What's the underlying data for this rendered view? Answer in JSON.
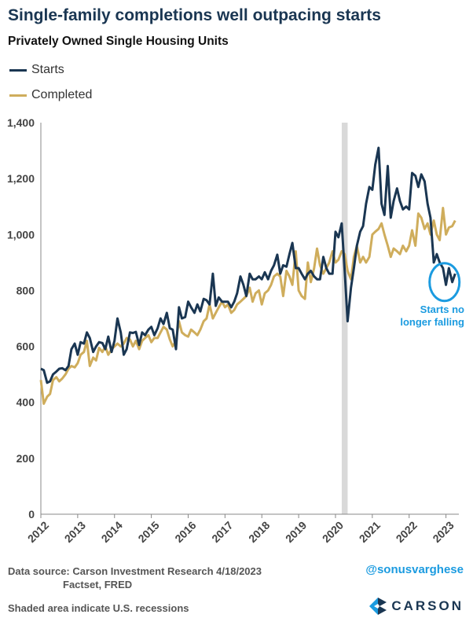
{
  "title": "Single-family completions well outpacing starts",
  "subtitle": "Privately Owned Single Housing Units",
  "footer": {
    "source_line1": "Data source: Carson Investment Research  4/18/2023",
    "source_line2": "Factset, FRED",
    "note": "Shaded area indicate U.S. recessions",
    "handle": "@sonusvarghese",
    "logo_text": "CARSON"
  },
  "colors": {
    "starts": "#1a3652",
    "completed": "#cfad5c",
    "recession": "#d9d9d9",
    "annotation": "#1b9be0",
    "logo": "#1a3652"
  },
  "chart_data": {
    "type": "line",
    "ylim": [
      0,
      1400
    ],
    "yticks": [
      0,
      200,
      400,
      600,
      800,
      1000,
      1200,
      1400
    ],
    "ytick_labels": [
      "0",
      "200",
      "400",
      "600",
      "800",
      "1,000",
      "1,200",
      "1,400"
    ],
    "xlim": [
      2012.0,
      2023.35
    ],
    "xticks": [
      2012,
      2013,
      2014,
      2015,
      2016,
      2017,
      2018,
      2019,
      2020,
      2021,
      2022,
      2023
    ],
    "xtick_labels": [
      "2012",
      "2013",
      "2014",
      "2015",
      "2016",
      "2017",
      "2018",
      "2019",
      "2020",
      "2021",
      "2022",
      "2023"
    ],
    "grid": false,
    "legend_position": "top-left",
    "recession": [
      2020.17,
      2020.33
    ],
    "annotation": {
      "text_line1": "Starts no",
      "text_line2": "longer falling",
      "x": 2022.96,
      "y": 830
    },
    "series": [
      {
        "name": "Starts",
        "color": "#1a3652",
        "points": [
          [
            2012.0,
            520
          ],
          [
            2012.08,
            515
          ],
          [
            2012.17,
            470
          ],
          [
            2012.25,
            475
          ],
          [
            2012.33,
            500
          ],
          [
            2012.42,
            510
          ],
          [
            2012.5,
            520
          ],
          [
            2012.58,
            522
          ],
          [
            2012.67,
            515
          ],
          [
            2012.75,
            530
          ],
          [
            2012.83,
            590
          ],
          [
            2012.92,
            610
          ],
          [
            2013.0,
            570
          ],
          [
            2013.08,
            615
          ],
          [
            2013.17,
            610
          ],
          [
            2013.25,
            650
          ],
          [
            2013.33,
            630
          ],
          [
            2013.42,
            580
          ],
          [
            2013.5,
            600
          ],
          [
            2013.58,
            615
          ],
          [
            2013.67,
            612
          ],
          [
            2013.75,
            590
          ],
          [
            2013.83,
            635
          ],
          [
            2013.92,
            580
          ],
          [
            2014.0,
            620
          ],
          [
            2014.08,
            700
          ],
          [
            2014.17,
            650
          ],
          [
            2014.25,
            570
          ],
          [
            2014.33,
            590
          ],
          [
            2014.42,
            650
          ],
          [
            2014.5,
            648
          ],
          [
            2014.58,
            652
          ],
          [
            2014.67,
            605
          ],
          [
            2014.75,
            650
          ],
          [
            2014.83,
            640
          ],
          [
            2014.92,
            660
          ],
          [
            2015.0,
            670
          ],
          [
            2015.08,
            640
          ],
          [
            2015.17,
            665
          ],
          [
            2015.25,
            700
          ],
          [
            2015.33,
            680
          ],
          [
            2015.42,
            720
          ],
          [
            2015.5,
            665
          ],
          [
            2015.58,
            660
          ],
          [
            2015.67,
            590
          ],
          [
            2015.75,
            740
          ],
          [
            2015.83,
            700
          ],
          [
            2015.92,
            705
          ],
          [
            2016.0,
            760
          ],
          [
            2016.08,
            740
          ],
          [
            2016.17,
            720
          ],
          [
            2016.25,
            750
          ],
          [
            2016.33,
            725
          ],
          [
            2016.42,
            770
          ],
          [
            2016.5,
            765
          ],
          [
            2016.58,
            750
          ],
          [
            2016.67,
            860
          ],
          [
            2016.75,
            745
          ],
          [
            2016.83,
            775
          ],
          [
            2016.92,
            760
          ],
          [
            2017.0,
            760
          ],
          [
            2017.08,
            760
          ],
          [
            2017.17,
            740
          ],
          [
            2017.25,
            760
          ],
          [
            2017.33,
            790
          ],
          [
            2017.42,
            850
          ],
          [
            2017.5,
            820
          ],
          [
            2017.58,
            780
          ],
          [
            2017.67,
            860
          ],
          [
            2017.75,
            840
          ],
          [
            2017.83,
            840
          ],
          [
            2017.92,
            850
          ],
          [
            2018.0,
            840
          ],
          [
            2018.08,
            865
          ],
          [
            2018.17,
            840
          ],
          [
            2018.25,
            870
          ],
          [
            2018.33,
            890
          ],
          [
            2018.42,
            928
          ],
          [
            2018.5,
            860
          ],
          [
            2018.58,
            890
          ],
          [
            2018.67,
            885
          ],
          [
            2018.75,
            930
          ],
          [
            2018.83,
            970
          ],
          [
            2018.92,
            880
          ],
          [
            2019.0,
            880
          ],
          [
            2019.08,
            860
          ],
          [
            2019.17,
            840
          ],
          [
            2019.25,
            860
          ],
          [
            2019.33,
            870
          ],
          [
            2019.42,
            850
          ],
          [
            2019.5,
            840
          ],
          [
            2019.58,
            840
          ],
          [
            2019.67,
            920
          ],
          [
            2019.75,
            880
          ],
          [
            2019.83,
            860
          ],
          [
            2019.92,
            860
          ],
          [
            2020.0,
            1010
          ],
          [
            2020.08,
            990
          ],
          [
            2020.17,
            1040
          ],
          [
            2020.25,
            870
          ],
          [
            2020.33,
            690
          ],
          [
            2020.42,
            810
          ],
          [
            2020.5,
            880
          ],
          [
            2020.58,
            960
          ],
          [
            2020.67,
            1010
          ],
          [
            2020.75,
            1030
          ],
          [
            2020.83,
            1110
          ],
          [
            2020.92,
            1170
          ],
          [
            2021.0,
            1160
          ],
          [
            2021.08,
            1250
          ],
          [
            2021.17,
            1310
          ],
          [
            2021.25,
            1110
          ],
          [
            2021.33,
            1070
          ],
          [
            2021.42,
            1245
          ],
          [
            2021.5,
            1060
          ],
          [
            2021.58,
            1120
          ],
          [
            2021.67,
            1165
          ],
          [
            2021.75,
            1120
          ],
          [
            2021.83,
            1090
          ],
          [
            2021.92,
            1100
          ],
          [
            2022.0,
            1090
          ],
          [
            2022.08,
            1220
          ],
          [
            2022.17,
            1210
          ],
          [
            2022.25,
            1170
          ],
          [
            2022.33,
            1215
          ],
          [
            2022.42,
            1190
          ],
          [
            2022.5,
            1110
          ],
          [
            2022.58,
            1060
          ],
          [
            2022.67,
            900
          ],
          [
            2022.75,
            930
          ],
          [
            2022.83,
            900
          ],
          [
            2022.92,
            880
          ],
          [
            2023.0,
            820
          ],
          [
            2023.08,
            880
          ],
          [
            2023.17,
            830
          ],
          [
            2023.25,
            860
          ]
        ]
      },
      {
        "name": "Completed",
        "color": "#cfad5c",
        "points": [
          [
            2012.0,
            480
          ],
          [
            2012.08,
            395
          ],
          [
            2012.17,
            420
          ],
          [
            2012.25,
            430
          ],
          [
            2012.33,
            480
          ],
          [
            2012.42,
            490
          ],
          [
            2012.5,
            475
          ],
          [
            2012.58,
            485
          ],
          [
            2012.67,
            500
          ],
          [
            2012.75,
            520
          ],
          [
            2012.83,
            530
          ],
          [
            2012.92,
            525
          ],
          [
            2013.0,
            540
          ],
          [
            2013.08,
            570
          ],
          [
            2013.17,
            580
          ],
          [
            2013.25,
            620
          ],
          [
            2013.33,
            530
          ],
          [
            2013.42,
            560
          ],
          [
            2013.5,
            550
          ],
          [
            2013.58,
            595
          ],
          [
            2013.67,
            580
          ],
          [
            2013.75,
            600
          ],
          [
            2013.83,
            570
          ],
          [
            2013.92,
            590
          ],
          [
            2014.0,
            600
          ],
          [
            2014.08,
            610
          ],
          [
            2014.17,
            600
          ],
          [
            2014.25,
            610
          ],
          [
            2014.33,
            630
          ],
          [
            2014.42,
            625
          ],
          [
            2014.5,
            600
          ],
          [
            2014.58,
            620
          ],
          [
            2014.67,
            590
          ],
          [
            2014.75,
            620
          ],
          [
            2014.83,
            630
          ],
          [
            2014.92,
            640
          ],
          [
            2015.0,
            615
          ],
          [
            2015.08,
            630
          ],
          [
            2015.17,
            630
          ],
          [
            2015.25,
            650
          ],
          [
            2015.33,
            670
          ],
          [
            2015.42,
            660
          ],
          [
            2015.5,
            625
          ],
          [
            2015.58,
            600
          ],
          [
            2015.67,
            620
          ],
          [
            2015.75,
            690
          ],
          [
            2015.83,
            650
          ],
          [
            2015.92,
            640
          ],
          [
            2016.0,
            635
          ],
          [
            2016.08,
            660
          ],
          [
            2016.17,
            650
          ],
          [
            2016.25,
            640
          ],
          [
            2016.33,
            660
          ],
          [
            2016.42,
            690
          ],
          [
            2016.5,
            700
          ],
          [
            2016.58,
            750
          ],
          [
            2016.67,
            700
          ],
          [
            2016.75,
            720
          ],
          [
            2016.83,
            740
          ],
          [
            2016.92,
            760
          ],
          [
            2017.0,
            740
          ],
          [
            2017.08,
            750
          ],
          [
            2017.17,
            720
          ],
          [
            2017.25,
            730
          ],
          [
            2017.33,
            750
          ],
          [
            2017.42,
            760
          ],
          [
            2017.5,
            770
          ],
          [
            2017.58,
            780
          ],
          [
            2017.67,
            810
          ],
          [
            2017.75,
            760
          ],
          [
            2017.83,
            790
          ],
          [
            2017.92,
            800
          ],
          [
            2018.0,
            750
          ],
          [
            2018.08,
            790
          ],
          [
            2018.17,
            800
          ],
          [
            2018.25,
            820
          ],
          [
            2018.33,
            850
          ],
          [
            2018.42,
            860
          ],
          [
            2018.5,
            850
          ],
          [
            2018.58,
            780
          ],
          [
            2018.67,
            870
          ],
          [
            2018.75,
            850
          ],
          [
            2018.83,
            820
          ],
          [
            2018.92,
            940
          ],
          [
            2019.0,
            800
          ],
          [
            2019.08,
            780
          ],
          [
            2019.17,
            770
          ],
          [
            2019.25,
            900
          ],
          [
            2019.33,
            830
          ],
          [
            2019.42,
            880
          ],
          [
            2019.5,
            950
          ],
          [
            2019.58,
            890
          ],
          [
            2019.67,
            860
          ],
          [
            2019.75,
            880
          ],
          [
            2019.83,
            900
          ],
          [
            2019.92,
            940
          ],
          [
            2020.0,
            900
          ],
          [
            2020.08,
            910
          ],
          [
            2020.17,
            940
          ],
          [
            2020.25,
            930
          ],
          [
            2020.33,
            870
          ],
          [
            2020.42,
            840
          ],
          [
            2020.5,
            920
          ],
          [
            2020.58,
            960
          ],
          [
            2020.67,
            900
          ],
          [
            2020.75,
            920
          ],
          [
            2020.83,
            900
          ],
          [
            2020.92,
            920
          ],
          [
            2021.0,
            1000
          ],
          [
            2021.08,
            1010
          ],
          [
            2021.17,
            1020
          ],
          [
            2021.25,
            1040
          ],
          [
            2021.33,
            1000
          ],
          [
            2021.42,
            960
          ],
          [
            2021.5,
            920
          ],
          [
            2021.58,
            950
          ],
          [
            2021.67,
            940
          ],
          [
            2021.75,
            930
          ],
          [
            2021.83,
            960
          ],
          [
            2021.92,
            940
          ],
          [
            2022.0,
            960
          ],
          [
            2022.08,
            1015
          ],
          [
            2022.17,
            960
          ],
          [
            2022.25,
            1075
          ],
          [
            2022.33,
            1060
          ],
          [
            2022.42,
            1020
          ],
          [
            2022.5,
            1040
          ],
          [
            2022.58,
            1000
          ],
          [
            2022.67,
            1050
          ],
          [
            2022.75,
            1000
          ],
          [
            2022.83,
            980
          ],
          [
            2022.92,
            1095
          ],
          [
            2023.0,
            1000
          ],
          [
            2023.08,
            1025
          ],
          [
            2023.17,
            1030
          ],
          [
            2023.25,
            1050
          ]
        ]
      }
    ]
  }
}
